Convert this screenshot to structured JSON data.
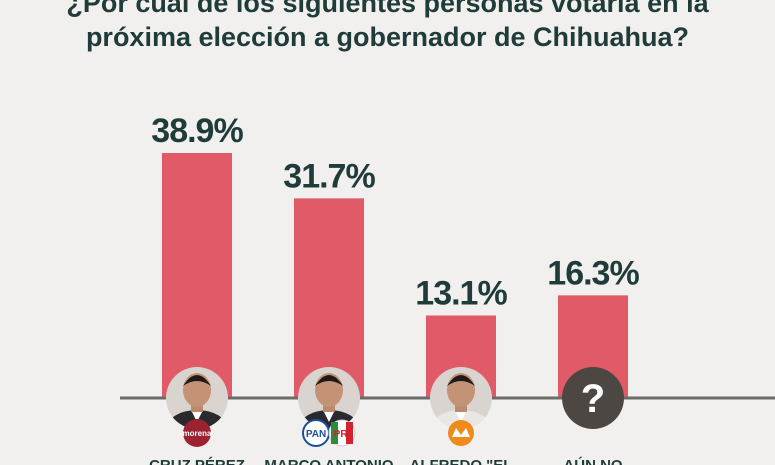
{
  "title": {
    "line1": "¿Por cuál de los siguientes personas votaría en la",
    "line2": "próxima elección a gobernador de Chihuahua?"
  },
  "chart_data": {
    "type": "bar",
    "categories": [
      "CRUZ PÉREZ",
      "MARCO ANTONIO",
      "ALFREDO \"EL",
      "AÚN NO"
    ],
    "values": [
      38.9,
      31.7,
      13.1,
      16.3
    ],
    "value_labels": [
      "38.9%",
      "31.7%",
      "13.1%",
      "16.3%"
    ],
    "party_badges": [
      "morena",
      "PAN PRI",
      "MC",
      ""
    ],
    "unknown_symbol": "?",
    "ylim": [
      0,
      45
    ],
    "grid": false,
    "colors": {
      "bar": "#e05a68",
      "text": "#1f3b3a",
      "axis": "#6b6b6b",
      "photo": "#4a4540",
      "badge_red": "#9c2231",
      "badge_blue": "#1c4e9c",
      "badge_orange": "#f08a1c"
    }
  }
}
